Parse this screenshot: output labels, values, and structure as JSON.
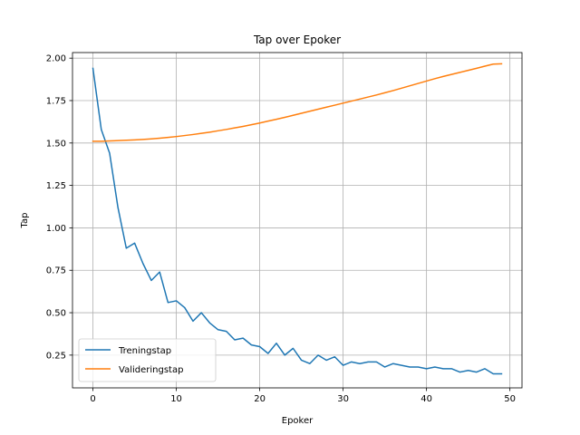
{
  "chart_data": {
    "type": "line",
    "title": "Tap over Epoker",
    "xlabel": "Epoker",
    "ylabel": "Tap",
    "xlim": [
      -2.45,
      51.45
    ],
    "ylim": [
      0.057,
      2.033
    ],
    "xticks": [
      "0",
      "10",
      "20",
      "30",
      "40",
      "50"
    ],
    "yticks": [
      "0.25",
      "0.50",
      "0.75",
      "1.00",
      "1.25",
      "1.50",
      "1.75",
      "2.00"
    ],
    "grid": true,
    "legend_position": "lower-left",
    "x": [
      0,
      1,
      2,
      3,
      4,
      5,
      6,
      7,
      8,
      9,
      10,
      11,
      12,
      13,
      14,
      15,
      16,
      17,
      18,
      19,
      20,
      21,
      22,
      23,
      24,
      25,
      26,
      27,
      28,
      29,
      30,
      31,
      32,
      33,
      34,
      35,
      36,
      37,
      38,
      39,
      40,
      41,
      42,
      43,
      44,
      45,
      46,
      47,
      48,
      49
    ],
    "series": [
      {
        "name": "Treningstap",
        "color": "#1f77b4",
        "values": [
          1.94,
          1.58,
          1.44,
          1.12,
          0.88,
          0.91,
          0.79,
          0.69,
          0.74,
          0.56,
          0.57,
          0.53,
          0.45,
          0.5,
          0.44,
          0.4,
          0.39,
          0.34,
          0.35,
          0.31,
          0.3,
          0.26,
          0.32,
          0.25,
          0.29,
          0.22,
          0.2,
          0.25,
          0.22,
          0.24,
          0.19,
          0.21,
          0.2,
          0.21,
          0.21,
          0.18,
          0.2,
          0.19,
          0.18,
          0.18,
          0.17,
          0.18,
          0.17,
          0.17,
          0.15,
          0.16,
          0.15,
          0.17,
          0.14,
          0.14
        ]
      },
      {
        "name": "Valideringstap",
        "color": "#ff7f0e",
        "values": [
          1.51,
          1.51,
          1.512,
          1.514,
          1.516,
          1.518,
          1.521,
          1.524,
          1.528,
          1.533,
          1.538,
          1.544,
          1.55,
          1.557,
          1.564,
          1.572,
          1.58,
          1.589,
          1.598,
          1.608,
          1.618,
          1.629,
          1.64,
          1.651,
          1.663,
          1.675,
          1.687,
          1.699,
          1.711,
          1.723,
          1.735,
          1.747,
          1.759,
          1.771,
          1.783,
          1.796,
          1.809,
          1.823,
          1.837,
          1.851,
          1.865,
          1.879,
          1.892,
          1.904,
          1.916,
          1.928,
          1.94,
          1.953,
          1.965,
          1.967
        ]
      }
    ]
  }
}
